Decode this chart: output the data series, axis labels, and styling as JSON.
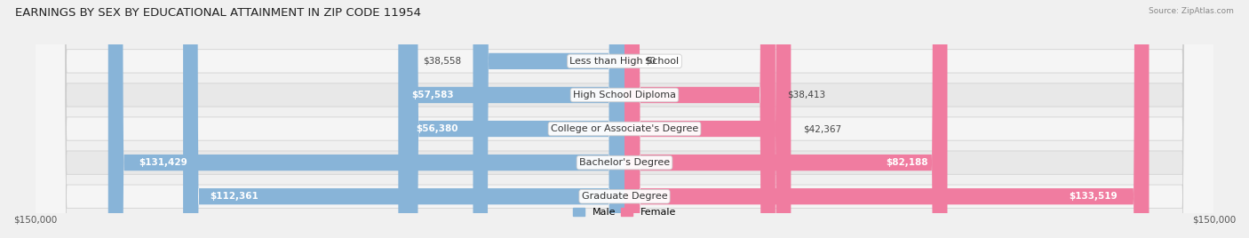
{
  "title": "EARNINGS BY SEX BY EDUCATIONAL ATTAINMENT IN ZIP CODE 11954",
  "source": "Source: ZipAtlas.com",
  "categories": [
    "Less than High School",
    "High School Diploma",
    "College or Associate's Degree",
    "Bachelor's Degree",
    "Graduate Degree"
  ],
  "male_values": [
    38558,
    57583,
    56380,
    131429,
    112361
  ],
  "female_values": [
    0,
    38413,
    42367,
    82188,
    133519
  ],
  "male_color": "#88b4d8",
  "female_color": "#f07ca0",
  "axis_limit": 150000,
  "xlabel_left": "$150,000",
  "xlabel_right": "$150,000",
  "legend_male": "Male",
  "legend_female": "Female",
  "background_color": "#f0f0f0",
  "row_bg_odd": "#e8e8e8",
  "row_bg_even": "#f5f5f5",
  "title_fontsize": 9.5,
  "label_fontsize": 8,
  "value_fontsize": 7.5,
  "inside_label_threshold": 50000
}
